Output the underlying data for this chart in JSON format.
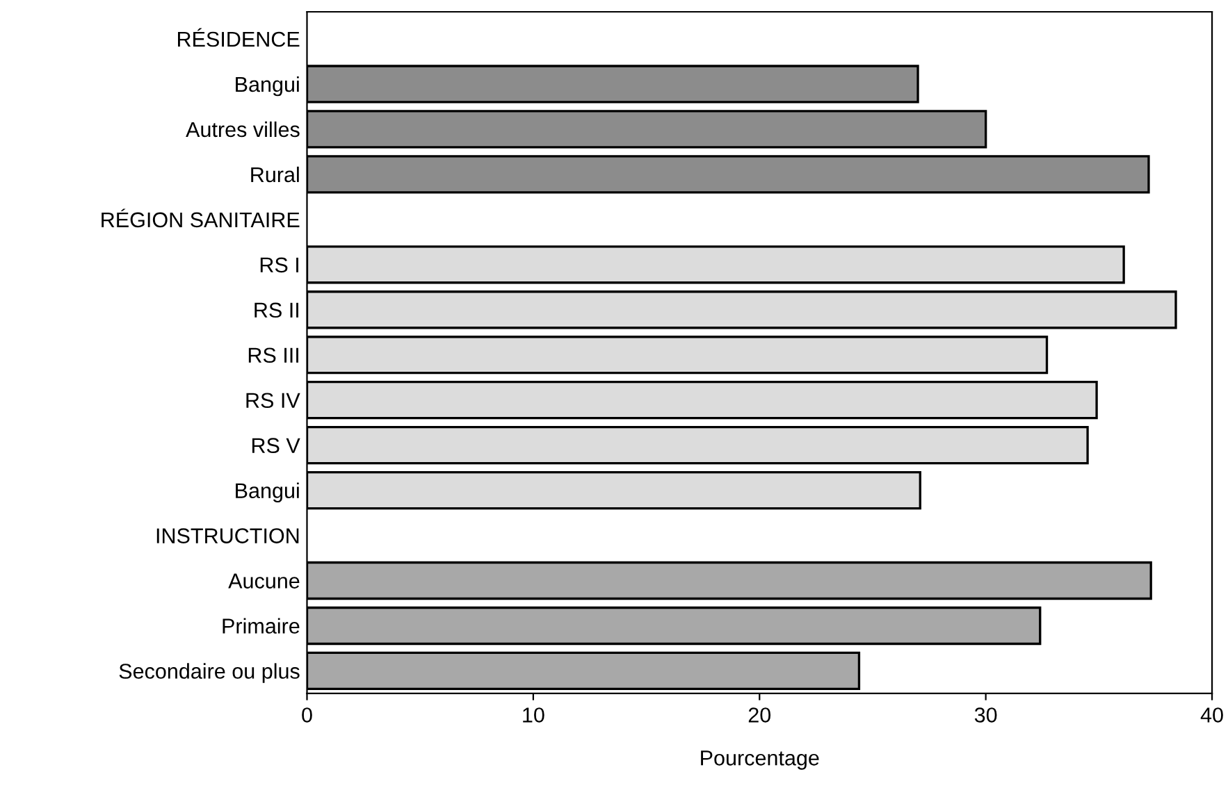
{
  "chart_data": {
    "type": "bar",
    "orientation": "horizontal",
    "xlabel": "Pourcentage",
    "categories": [
      "RÉSIDENCE",
      "Bangui",
      "Autres villes",
      "Rural",
      "RÉGION SANITAIRE",
      "RS I",
      "RS II",
      "RS III",
      "RS IV",
      "RS V",
      "Bangui",
      "INSTRUCTION",
      "Aucune",
      "Primaire",
      "Secondaire ou plus"
    ],
    "series": [
      {
        "color": "#8c8c8c",
        "values": [
          null,
          27.0,
          30.0,
          37.2,
          null,
          null,
          null,
          null,
          null,
          null,
          null,
          null,
          null,
          null,
          null
        ]
      },
      {
        "color": "#dcdcdc",
        "values": [
          null,
          null,
          null,
          null,
          null,
          36.1,
          38.4,
          32.7,
          34.9,
          34.5,
          27.1,
          null,
          null,
          null,
          null
        ]
      },
      {
        "color": "#a8a8a8",
        "values": [
          null,
          null,
          null,
          null,
          null,
          null,
          null,
          null,
          null,
          null,
          null,
          null,
          37.3,
          32.4,
          24.4
        ]
      }
    ],
    "xlim": [
      0,
      40
    ],
    "xticks": [
      0,
      10,
      20,
      30,
      40
    ],
    "grid": false
  }
}
